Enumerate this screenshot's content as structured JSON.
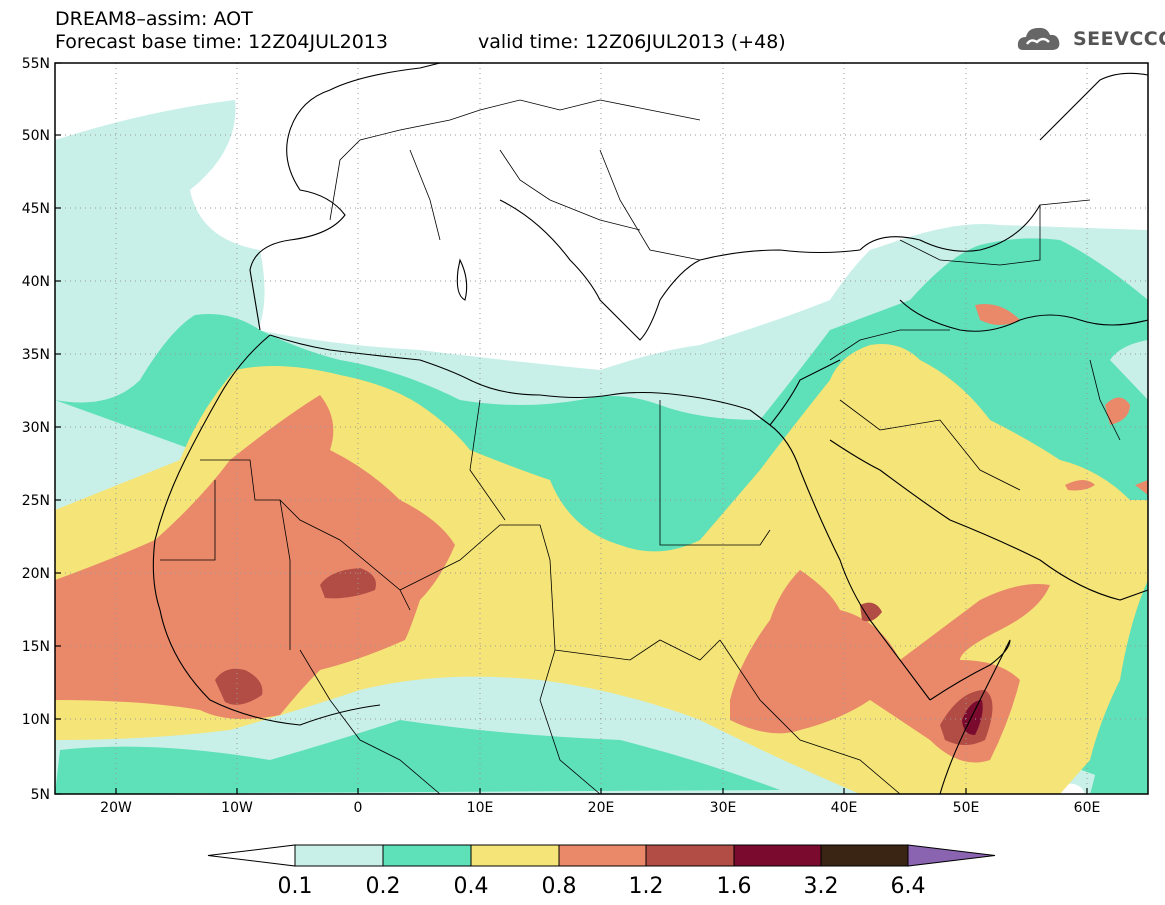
{
  "header": {
    "title": "DREAM8–assim: AOT",
    "base_time": "Forecast base time: 12Z04JUL2013",
    "valid_time": "valid time: 12Z06JUL2013 (+48)"
  },
  "logo": {
    "text": "SEEVCCC",
    "icon": "cloud-icon"
  },
  "axes": {
    "lat_labels": [
      "55N",
      "50N",
      "45N",
      "40N",
      "35N",
      "30N",
      "25N",
      "20N",
      "15N",
      "10N",
      "5N"
    ],
    "lon_labels": [
      "20W",
      "10W",
      "0",
      "10E",
      "20E",
      "30E",
      "40E",
      "50E",
      "60E"
    ]
  },
  "colorbar": {
    "labels": [
      "0.1",
      "0.2",
      "0.4",
      "0.8",
      "1.2",
      "1.6",
      "3.2",
      "6.4"
    ],
    "colors": [
      "#ffffff",
      "#c8f0e8",
      "#5ee0b8",
      "#f5e478",
      "#e9896a",
      "#b24d45",
      "#7a0a2e",
      "#3a2414",
      "#8a64b0"
    ]
  }
}
